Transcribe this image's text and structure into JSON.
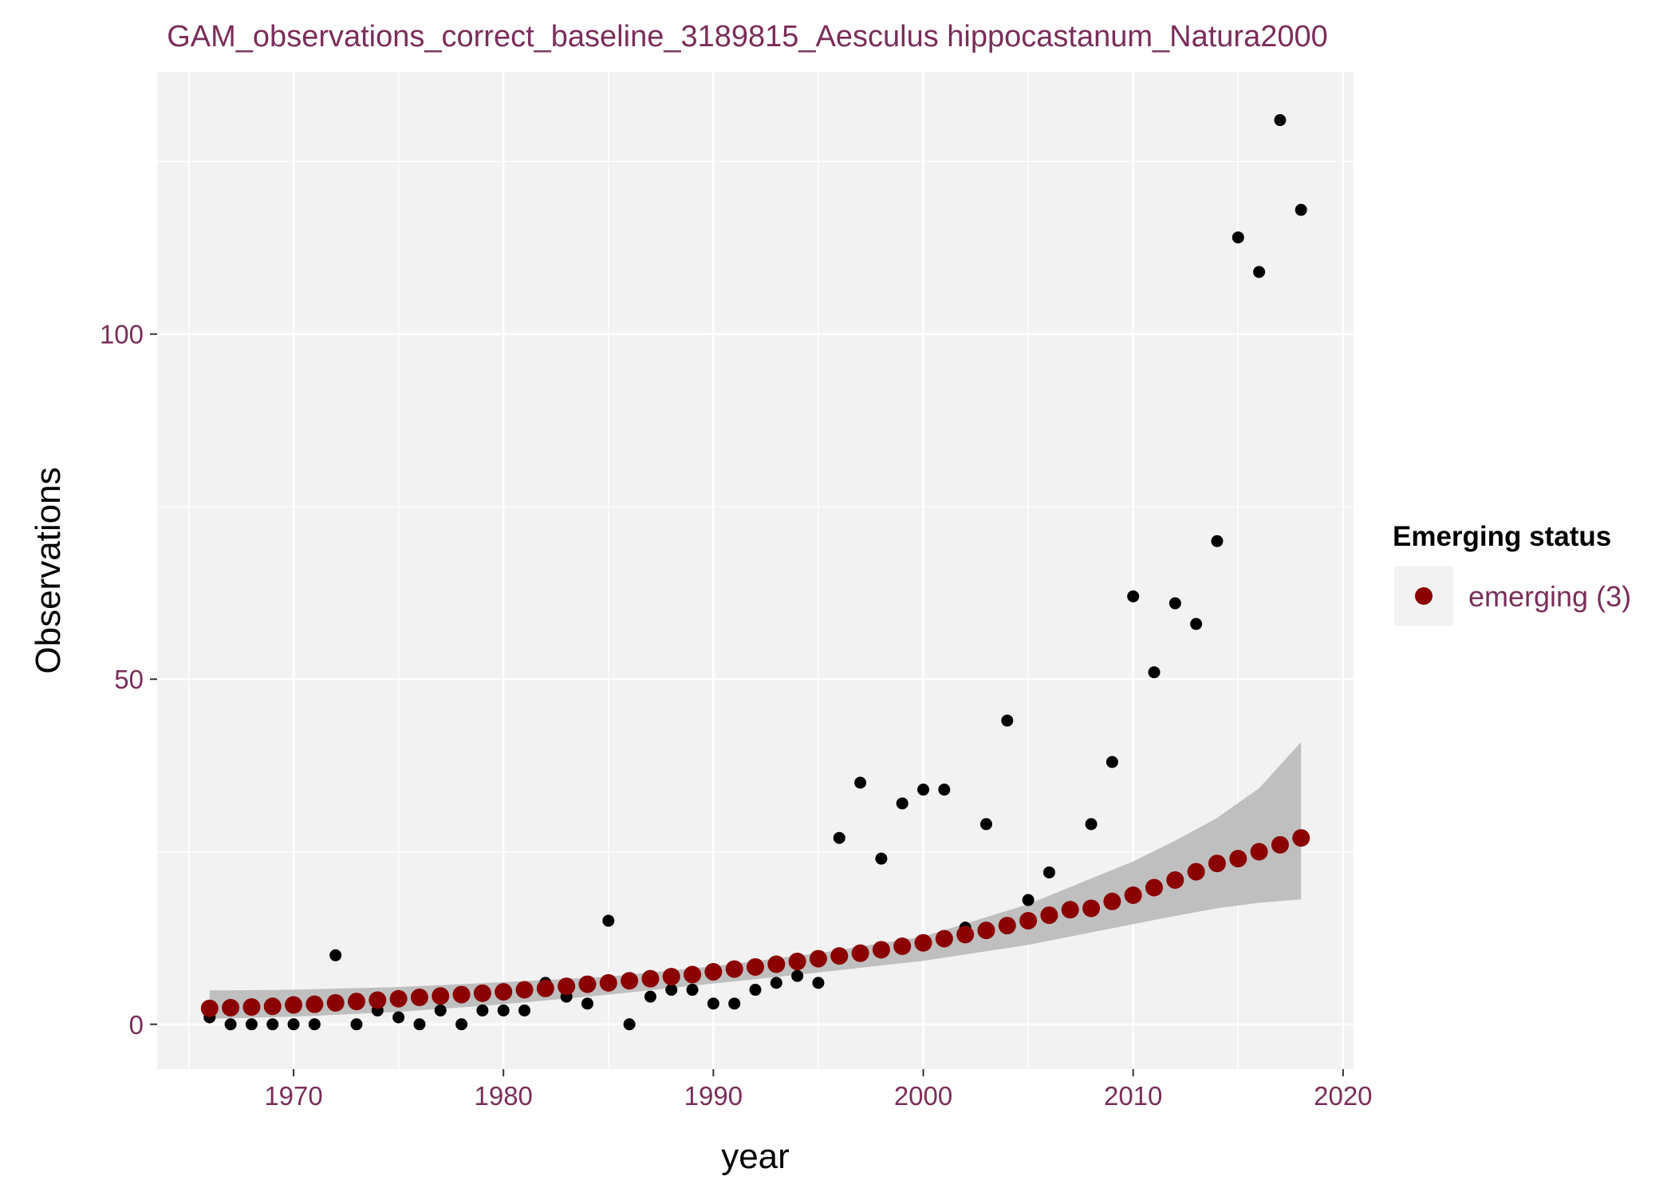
{
  "chart_data": {
    "type": "scatter",
    "title": "GAM_observations_correct_baseline_3189815_Aesculus hippocastanum_Natura2000",
    "xlabel": "year",
    "ylabel": "Observations",
    "xlim": [
      1963.5,
      2020.5
    ],
    "ylim": [
      -6.5,
      138
    ],
    "x_ticks": [
      1970,
      1980,
      1990,
      2000,
      2010,
      2020
    ],
    "y_ticks": [
      0,
      50,
      100
    ],
    "grid": true,
    "legend": {
      "title": "Emerging status",
      "position": "right",
      "entries": [
        {
          "label": "emerging (3)",
          "color": "#8b0000"
        }
      ]
    },
    "colors": {
      "panel": "#f2f2f2",
      "grid": "#ffffff",
      "band": "#bfbfbf",
      "observed": "#000000",
      "fitted": "#8b0000"
    },
    "series": [
      {
        "role": "observed",
        "x": [
          1966,
          1967,
          1968,
          1969,
          1970,
          1971,
          1972,
          1973,
          1974,
          1975,
          1976,
          1977,
          1978,
          1979,
          1980,
          1981,
          1982,
          1983,
          1984,
          1985,
          1986,
          1987,
          1988,
          1989,
          1990,
          1991,
          1992,
          1993,
          1994,
          1995,
          1996,
          1997,
          1998,
          1999,
          2000,
          2001,
          2002,
          2003,
          2004,
          2005,
          2006,
          2007,
          2008,
          2009,
          2010,
          2011,
          2012,
          2013,
          2014,
          2015,
          2016,
          2017,
          2018
        ],
        "y": [
          1,
          0,
          0,
          0,
          0,
          0,
          10,
          0,
          2,
          1,
          0,
          2,
          0,
          2,
          2,
          2,
          6,
          4,
          3,
          15,
          0,
          4,
          5,
          5,
          3,
          3,
          5,
          6,
          7,
          6,
          27,
          35,
          24,
          32,
          34,
          34,
          14,
          29,
          44,
          18,
          22,
          17,
          29,
          38,
          62,
          51,
          61,
          58,
          70,
          114,
          109,
          131,
          118
        ]
      },
      {
        "name": "emerging (3)",
        "role": "fitted",
        "x": [
          1966,
          1967,
          1968,
          1969,
          1970,
          1971,
          1972,
          1973,
          1974,
          1975,
          1976,
          1977,
          1978,
          1979,
          1980,
          1981,
          1982,
          1983,
          1984,
          1985,
          1986,
          1987,
          1988,
          1989,
          1990,
          1991,
          1992,
          1993,
          1994,
          1995,
          1996,
          1997,
          1998,
          1999,
          2000,
          2001,
          2002,
          2003,
          2004,
          2005,
          2006,
          2007,
          2008,
          2009,
          2010,
          2011,
          2012,
          2013,
          2014,
          2015,
          2016,
          2017,
          2018
        ],
        "y": [
          2.3,
          2.4,
          2.5,
          2.6,
          2.8,
          2.9,
          3.1,
          3.3,
          3.5,
          3.7,
          3.9,
          4.1,
          4.3,
          4.5,
          4.7,
          5.0,
          5.2,
          5.5,
          5.8,
          6.0,
          6.3,
          6.6,
          6.9,
          7.2,
          7.6,
          8.0,
          8.3,
          8.7,
          9.1,
          9.5,
          9.9,
          10.3,
          10.8,
          11.3,
          11.8,
          12.4,
          13.0,
          13.6,
          14.3,
          15.0,
          15.8,
          16.6,
          16.8,
          17.8,
          18.7,
          19.8,
          20.9,
          22.1,
          23.3,
          24.0,
          25.0,
          26.0,
          27.0
        ]
      }
    ],
    "confidence_band": {
      "x": [
        1966,
        1970,
        1975,
        1980,
        1985,
        1990,
        1995,
        2000,
        2005,
        2010,
        2012,
        2014,
        2016,
        2018
      ],
      "lower": [
        0.8,
        1.1,
        1.8,
        2.9,
        4.3,
        5.9,
        7.5,
        9.2,
        11.5,
        14.5,
        15.7,
        16.8,
        17.6,
        18.1
      ],
      "upper": [
        4.9,
        5.0,
        5.4,
        6.1,
        6.9,
        8.4,
        10.3,
        12.7,
        17.4,
        23.6,
        26.6,
        29.9,
        34.2,
        40.9
      ]
    }
  }
}
